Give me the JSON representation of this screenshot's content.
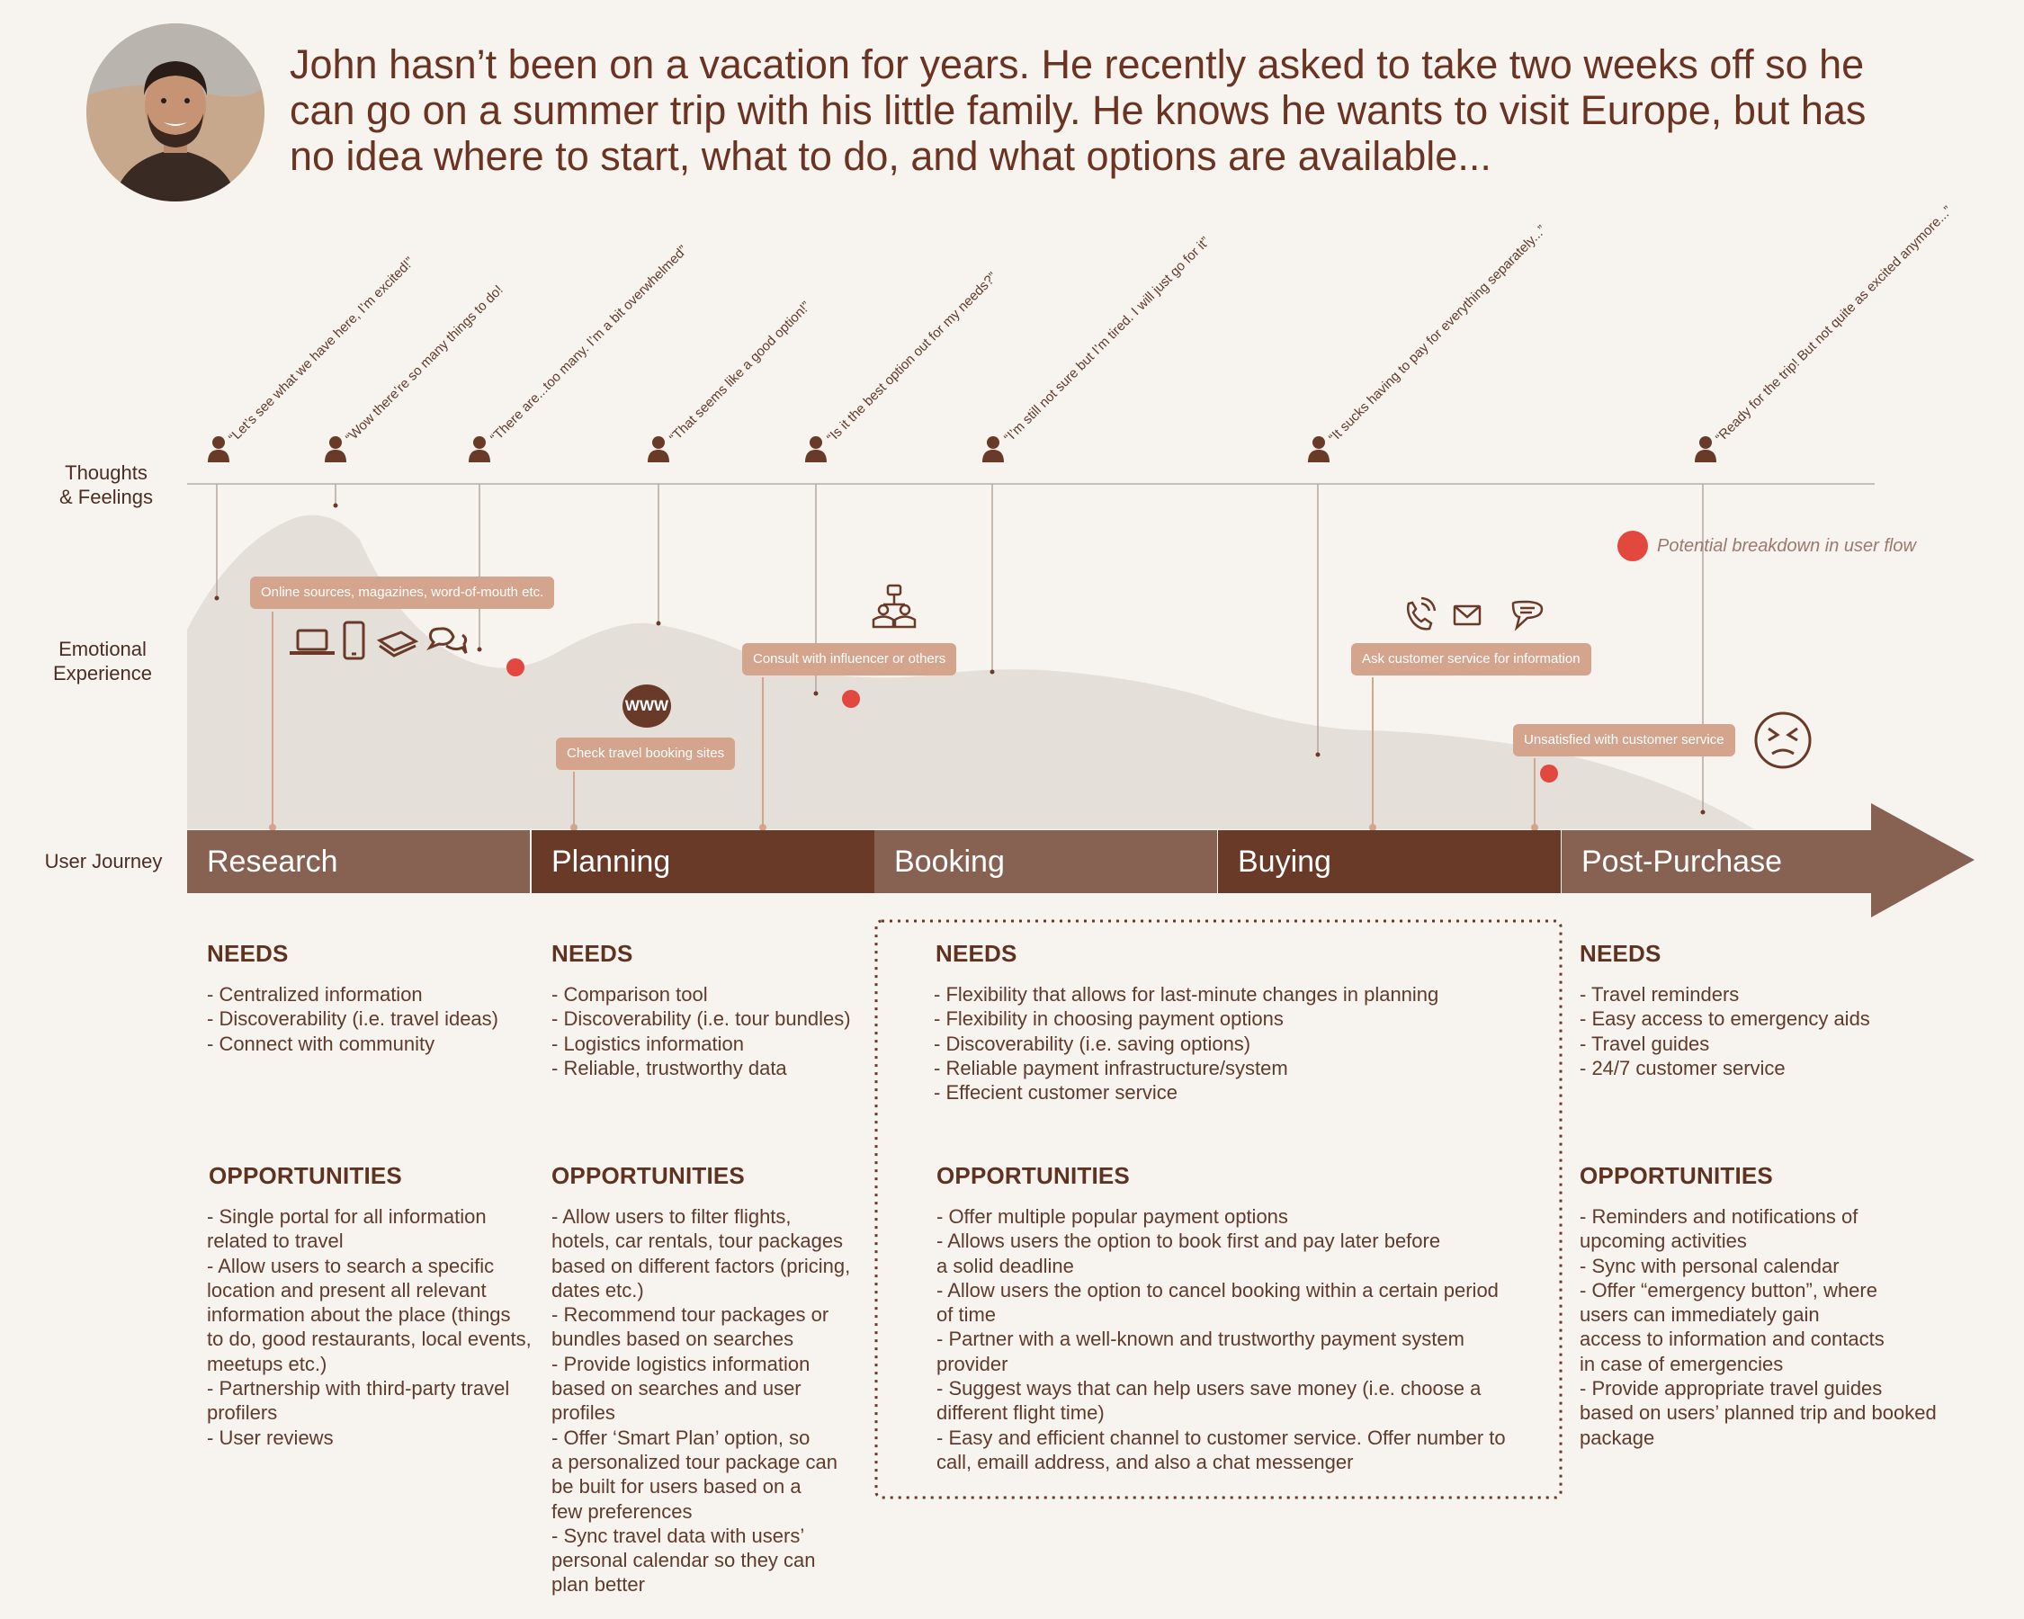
{
  "intro": "John hasn’t been on a vacation for years. He recently asked to take two weeks off so he can go on a summer trip with his little family. He knows he wants to visit Europe, but has no idea where to start, what to do, and what options are available...",
  "row_labels": {
    "thoughts": "Thoughts\n& Feelings",
    "emotional": "Emotional\nExperience",
    "journey": "User Journey"
  },
  "quotes": [
    "“Let’s see what we have here, I’m excited!”",
    "“Wow there’re so many things to do!",
    "“There are...too many. I’m a bit overwhelmed”",
    "“That seems like a good option!”",
    "“Is it the best option out for my needs?”",
    "“I’m still not sure but I’m tired. I will just go for it”",
    "“It sucks having to pay for everything separately...”",
    "“Ready for the trip! But not quite as excited anymore...”"
  ],
  "bubbles": {
    "online_sources": "Online sources, magazines, word-of-mouth etc.",
    "booking_sites": "Check travel booking sites",
    "influencer": "Consult with influencer or others",
    "customer_service": "Ask customer service for information",
    "unsatisfied": "Unsatisfied with customer service"
  },
  "www_label": "WWW",
  "legend": {
    "text": "Potential breakdown in user flow",
    "color": "#e2483d"
  },
  "colors": {
    "stage_light": "#876253",
    "stage_dark": "#6a3a29",
    "bubble": "#d4a48d",
    "curve": "#e5dfda",
    "breakdown": "#e2483d"
  },
  "stages": [
    "Research",
    "Planning",
    "Booking",
    "Buying",
    "Post-Purchase"
  ],
  "columns": [
    {
      "needs_title": "NEEDS",
      "needs": [
        "- Centralized information",
        "- Discoverability (i.e. travel ideas)",
        "- Connect with community"
      ],
      "opp_title": "OPPORTUNITIES",
      "opportunities": "- Single portal for all information\nrelated to travel\n- Allow users to search a specific\nlocation and present all relevant\ninformation about the place (things\nto do, good restaurants, local events,\nmeetups etc.)\n- Partnership with third-party travel\nprofilers\n- User reviews"
    },
    {
      "needs_title": "NEEDS",
      "needs": [
        "- Comparison tool",
        "- Discoverability (i.e. tour bundles)",
        "- Logistics information",
        "- Reliable, trustworthy data"
      ],
      "opp_title": "OPPORTUNITIES",
      "opportunities": "- Allow users to filter flights,\nhotels, car rentals, tour packages\nbased on different factors (pricing,\ndates etc.)\n- Recommend tour packages or\nbundles based on searches\n- Provide logistics information\nbased on searches and user\nprofiles\n- Offer ‘Smart Plan’ option, so\na personalized tour package can\nbe built for users based on a\nfew preferences\n- Sync travel data with users’\npersonal calendar so they can\nplan better"
    },
    {
      "needs_title": "NEEDS",
      "needs": [
        "- Flexibility that allows for last-minute changes in planning",
        "- Flexibility in choosing payment options",
        "- Discoverability (i.e. saving options)",
        "- Reliable payment infrastructure/system",
        "- Effecient customer service"
      ],
      "opp_title": "OPPORTUNITIES",
      "opportunities": "- Offer multiple popular payment options\n- Allows users the option to book first and pay later before\na solid deadline\n- Allow users the option to cancel booking within a certain period\nof time\n- Partner with a well-known and trustworthy payment system\nprovider\n- Suggest ways that can help users save money (i.e. choose a\ndifferent flight time)\n- Easy and efficient channel to customer service. Offer number to\ncall, emaill address, and also a chat messenger"
    },
    {
      "needs_title": "NEEDS",
      "needs": [
        "- Travel reminders",
        "- Easy access to emergency aids",
        "- Travel guides",
        "- 24/7 customer service"
      ],
      "opp_title": "OPPORTUNITIES",
      "opportunities": "- Reminders and notifications of\nupcoming activities\n- Sync with personal calendar\n- Offer “emergency button”, where\nusers can immediately gain\naccess to information and contacts\nin case of emergencies\n- Provide appropriate travel guides\nbased on users’ planned trip and booked\npackage"
    }
  ]
}
